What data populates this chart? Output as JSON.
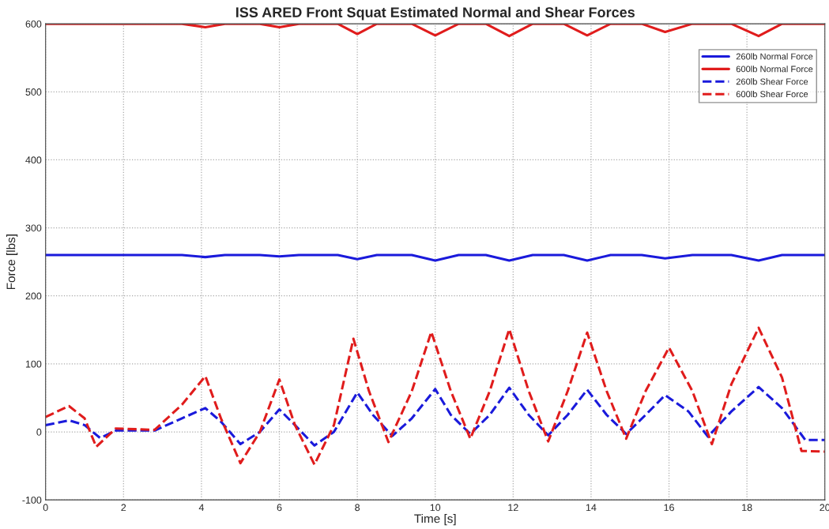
{
  "chart_data": {
    "type": "line",
    "title": "ISS ARED Front Squat Estimated Normal and Shear Forces",
    "xlabel": "Time [s]",
    "ylabel": "Force [lbs]",
    "xlim": [
      0,
      20
    ],
    "ylim": [
      -100,
      600
    ],
    "xticks": [
      0,
      2,
      4,
      6,
      8,
      10,
      12,
      14,
      16,
      18,
      20
    ],
    "yticks": [
      -100,
      0,
      100,
      200,
      300,
      400,
      500,
      600
    ],
    "grid": true,
    "legend": "top right",
    "series": [
      {
        "name": "260lb Normal Force",
        "color": "#1a1adb",
        "line_style": "solid",
        "x": [
          0,
          3.5,
          4.1,
          4.6,
          5.5,
          6.0,
          6.5,
          7.5,
          8.0,
          8.5,
          9.4,
          10.0,
          10.6,
          11.3,
          11.9,
          12.5,
          13.3,
          13.9,
          14.5,
          15.3,
          15.9,
          16.6,
          17.6,
          18.3,
          18.9,
          20
        ],
        "values": [
          260,
          260,
          257,
          260,
          260,
          258,
          260,
          260,
          254,
          260,
          260,
          252,
          260,
          260,
          252,
          260,
          260,
          252,
          260,
          260,
          255,
          260,
          260,
          252,
          260,
          260
        ]
      },
      {
        "name": "600lb Normal Force",
        "color": "#e01c1c",
        "line_style": "solid",
        "x": [
          0,
          3.5,
          4.1,
          4.6,
          5.5,
          6.0,
          6.5,
          7.5,
          8.0,
          8.5,
          9.4,
          10.0,
          10.6,
          11.3,
          11.9,
          12.5,
          13.3,
          13.9,
          14.5,
          15.3,
          15.9,
          16.6,
          17.6,
          18.3,
          18.9,
          20
        ],
        "values": [
          600,
          600,
          595,
          600,
          600,
          595,
          600,
          600,
          585,
          600,
          600,
          583,
          600,
          600,
          582,
          600,
          600,
          583,
          600,
          600,
          588,
          600,
          600,
          582,
          600,
          600
        ]
      },
      {
        "name": "260lb Shear Force",
        "color": "#1a1adb",
        "line_style": "dashed",
        "x": [
          0,
          0.6,
          1.0,
          1.4,
          1.8,
          2.8,
          3.5,
          4.1,
          4.5,
          5.0,
          5.5,
          6.0,
          6.4,
          6.9,
          7.4,
          8.0,
          8.4,
          8.9,
          9.4,
          10.0,
          10.4,
          10.9,
          11.4,
          11.9,
          12.4,
          12.9,
          13.4,
          13.9,
          14.4,
          14.9,
          15.4,
          15.9,
          16.5,
          17.0,
          17.6,
          18.3,
          18.9,
          19.5,
          20
        ],
        "values": [
          10,
          17,
          10,
          -9,
          2,
          2,
          20,
          35,
          15,
          -18,
          0,
          33,
          10,
          -20,
          0,
          58,
          25,
          -6,
          20,
          63,
          25,
          -3,
          25,
          65,
          25,
          -5,
          25,
          62,
          25,
          -3,
          25,
          54,
          30,
          -7,
          30,
          66,
          35,
          -12,
          -12
        ]
      },
      {
        "name": "600lb Shear Force",
        "color": "#e01c1c",
        "line_style": "dashed",
        "x": [
          0,
          0.6,
          1.0,
          1.3,
          1.8,
          2.8,
          3.5,
          4.1,
          4.5,
          5.0,
          5.5,
          6.0,
          6.4,
          6.9,
          7.4,
          7.9,
          8.3,
          8.8,
          9.4,
          9.9,
          10.4,
          10.9,
          11.4,
          11.9,
          12.4,
          12.9,
          13.4,
          13.9,
          14.4,
          14.9,
          15.4,
          16.0,
          16.6,
          17.1,
          17.6,
          18.3,
          18.9,
          19.4,
          20
        ],
        "values": [
          22,
          38,
          20,
          -22,
          5,
          3,
          40,
          82,
          20,
          -46,
          0,
          77,
          10,
          -48,
          10,
          137,
          60,
          -15,
          60,
          147,
          60,
          -10,
          60,
          151,
          60,
          -14,
          60,
          146,
          60,
          -10,
          60,
          124,
          60,
          -18,
          70,
          153,
          80,
          -28,
          -29
        ]
      }
    ]
  }
}
